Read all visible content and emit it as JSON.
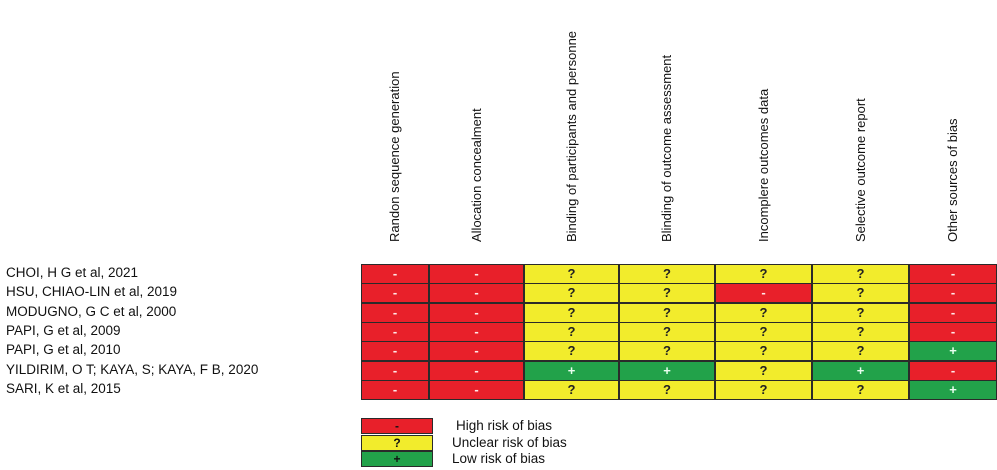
{
  "chart_data": {
    "type": "table",
    "columns": [
      "Randon sequence generation",
      "Allocation concealment",
      "Binding of participants and personne",
      "Blinding of outcome assessment",
      "Incomplere outcomes data",
      "Selective outcome report",
      "Other sources of bias"
    ],
    "rows": [
      {
        "study": "CHOI, H G et al, 2021",
        "values": [
          "-",
          "-",
          "?",
          "?",
          "?",
          "?",
          "-"
        ]
      },
      {
        "study": "HSU, CHIAO-LIN et al, 2019",
        "values": [
          "-",
          "-",
          "?",
          "?",
          "-",
          "?",
          "-"
        ]
      },
      {
        "study": "MODUGNO, G C et al, 2000",
        "values": [
          "-",
          "-",
          "?",
          "?",
          "?",
          "?",
          "-"
        ]
      },
      {
        "study": "PAPI, G et al, 2009",
        "values": [
          "-",
          "-",
          "?",
          "?",
          "?",
          "?",
          "-"
        ]
      },
      {
        "study": "PAPI, G et al, 2010",
        "values": [
          "-",
          "-",
          "?",
          "?",
          "?",
          "?",
          "+"
        ]
      },
      {
        "study": "YILDIRIM, O T; KAYA, S; KAYA, F B, 2020",
        "values": [
          "-",
          "-",
          "+",
          "+",
          "?",
          "+",
          "-"
        ]
      },
      {
        "study": "SARI, K et al, 2015",
        "values": [
          "-",
          "-",
          "?",
          "?",
          "?",
          "?",
          "+"
        ]
      }
    ],
    "legend": [
      {
        "symbol": "-",
        "label": "High risk of bias",
        "color": "#e8202a"
      },
      {
        "symbol": "?",
        "label": "Unclear risk of bias",
        "color": "#f2ec2c"
      },
      {
        "symbol": "+",
        "label": "Low risk of bias",
        "color": "#22a24a"
      }
    ],
    "colors": {
      "-": "#e8202a",
      "?": "#f2ec2c",
      "+": "#22a24a"
    }
  }
}
